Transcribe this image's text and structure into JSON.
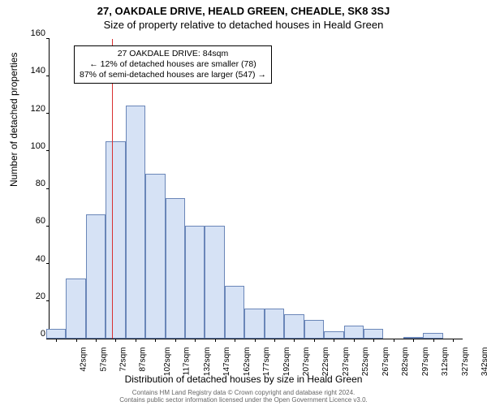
{
  "titles": {
    "main": "27, OAKDALE DRIVE, HEALD GREEN, CHEADLE, SK8 3SJ",
    "sub": "Size of property relative to detached houses in Heald Green"
  },
  "axes": {
    "ylabel": "Number of detached properties",
    "xlabel": "Distribution of detached houses by size in Heald Green",
    "ymax": 160,
    "yticks": [
      0,
      20,
      40,
      60,
      80,
      100,
      120,
      140,
      160
    ],
    "xticks_sqm": [
      42,
      57,
      72,
      87,
      102,
      117,
      132,
      147,
      162,
      177,
      192,
      207,
      222,
      237,
      252,
      267,
      282,
      297,
      312,
      327,
      342
    ]
  },
  "chart": {
    "type": "histogram",
    "bar_fill": "#d6e2f5",
    "bar_border": "#6a86b8",
    "background": "#ffffff",
    "font_family": "Arial",
    "xmin": 37,
    "xmax": 350,
    "bin_width": 15,
    "bins": [
      {
        "start": 42,
        "count": 5
      },
      {
        "start": 57,
        "count": 32
      },
      {
        "start": 72,
        "count": 66
      },
      {
        "start": 87,
        "count": 105
      },
      {
        "start": 102,
        "count": 124
      },
      {
        "start": 117,
        "count": 88
      },
      {
        "start": 132,
        "count": 75
      },
      {
        "start": 147,
        "count": 60
      },
      {
        "start": 162,
        "count": 60
      },
      {
        "start": 177,
        "count": 28
      },
      {
        "start": 192,
        "count": 16
      },
      {
        "start": 207,
        "count": 16
      },
      {
        "start": 222,
        "count": 13
      },
      {
        "start": 237,
        "count": 10
      },
      {
        "start": 252,
        "count": 4
      },
      {
        "start": 267,
        "count": 7
      },
      {
        "start": 282,
        "count": 5
      },
      {
        "start": 297,
        "count": 0
      },
      {
        "start": 312,
        "count": 1
      },
      {
        "start": 327,
        "count": 3
      },
      {
        "start": 342,
        "count": 0
      }
    ]
  },
  "reference": {
    "value_sqm": 84,
    "line_color": "#d93030"
  },
  "annotation": {
    "line1": "27 OAKDALE DRIVE: 84sqm",
    "line2": "← 12% of detached houses are smaller (78)",
    "line3": "87% of semi-detached houses are larger (547) →",
    "box_border": "#000000",
    "box_bg": "#ffffff",
    "font_size": 10.5
  },
  "footer": {
    "line1": "Contains HM Land Registry data © Crown copyright and database right 2024.",
    "line2": "Contains public sector information licensed under the Open Government Licence v3.0."
  }
}
